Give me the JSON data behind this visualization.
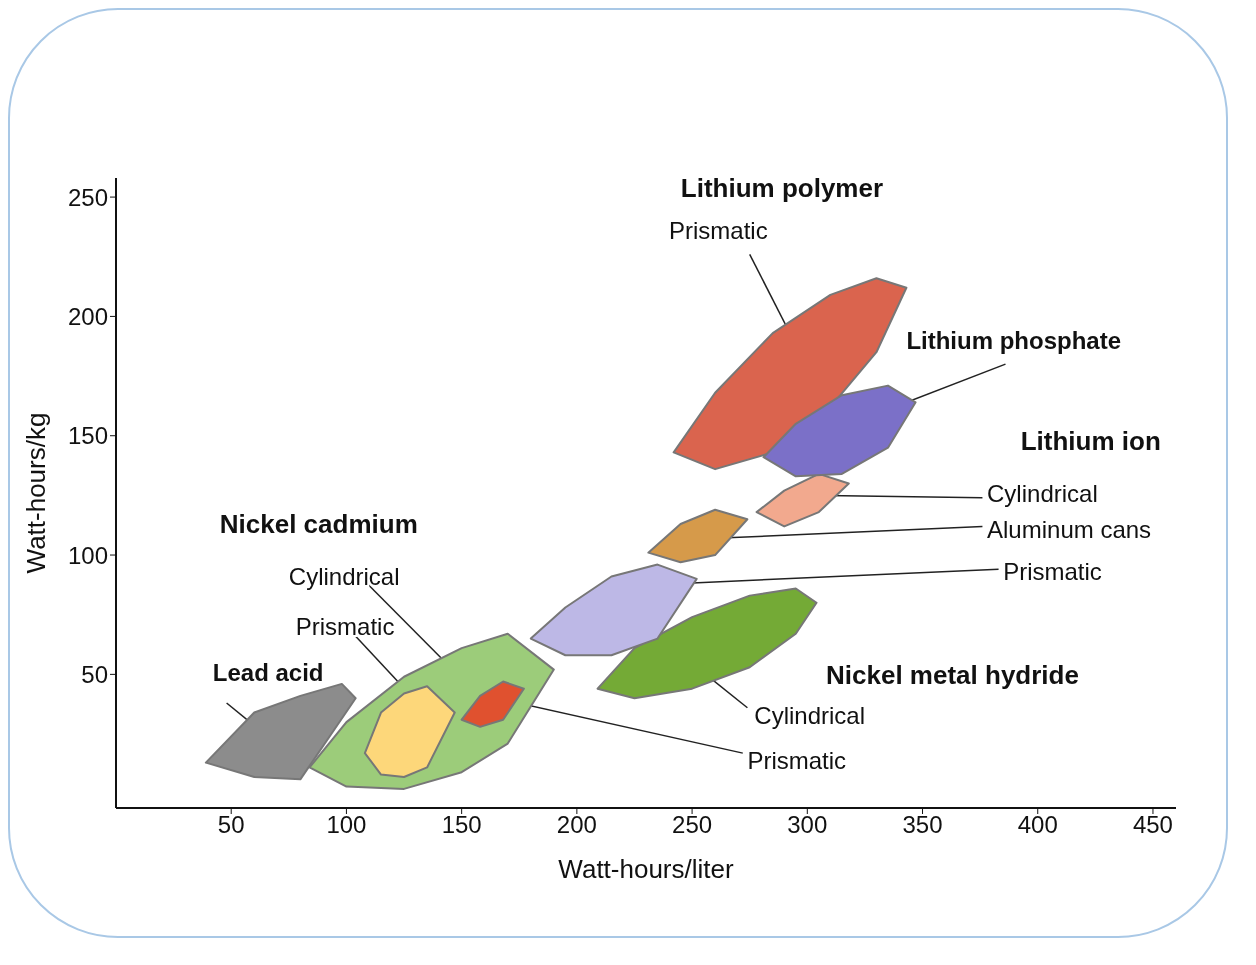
{
  "chart_data": {
    "type": "area",
    "xlabel": "Watt-hours/liter",
    "ylabel": "Watt-hours/kg",
    "xlim": [
      0,
      460
    ],
    "ylim": [
      -6,
      258
    ],
    "xticks": [
      50,
      100,
      150,
      200,
      250,
      300,
      350,
      400,
      450
    ],
    "yticks": [
      50,
      100,
      150,
      200,
      250
    ],
    "series": [
      {
        "name": "Lead acid",
        "color": "#8c8c8c",
        "x": [
          39,
          60,
          80,
          104,
          98,
          80,
          60
        ],
        "values": [
          13,
          7,
          6,
          40,
          46,
          41,
          34
        ]
      },
      {
        "name": "Cylindrical",
        "color": "#9ccc7a",
        "x": [
          84,
          100,
          125,
          150,
          170,
          190,
          170,
          150,
          125,
          100
        ],
        "values": [
          11,
          3,
          2,
          9,
          21,
          52,
          67,
          61,
          49,
          30
        ]
      },
      {
        "name": "Prismatic",
        "color": "#fdd77a",
        "x": [
          108,
          115,
          125,
          135,
          147,
          135,
          125,
          115
        ],
        "values": [
          17,
          8,
          7,
          11,
          34,
          45,
          42,
          34
        ]
      },
      {
        "name": "Prismatic",
        "color": "#e0512f",
        "x": [
          150,
          158,
          168,
          177,
          168,
          158
        ],
        "values": [
          31,
          28,
          31,
          44,
          47,
          41
        ]
      },
      {
        "name": "Cylindrical",
        "color": "#74aa36",
        "x": [
          209,
          225,
          250,
          275,
          295,
          304,
          295,
          275,
          250,
          225
        ],
        "values": [
          44,
          40,
          44,
          53,
          67,
          80,
          86,
          83,
          74,
          61
        ]
      },
      {
        "name": "Prismatic",
        "color": "#bdb8e6",
        "x": [
          180,
          195,
          215,
          235,
          252,
          235,
          215,
          195
        ],
        "values": [
          65,
          58,
          58,
          65,
          90,
          96,
          91,
          78
        ]
      },
      {
        "name": "Aluminum cans",
        "color": "#d69a4a",
        "x": [
          231,
          245,
          260,
          274,
          260,
          245
        ],
        "values": [
          101,
          97,
          100,
          115,
          119,
          113
        ]
      },
      {
        "name": "Cylindrical",
        "color": "#f2a98e",
        "x": [
          278,
          290,
          305,
          318,
          305,
          290
        ],
        "values": [
          118,
          112,
          118,
          130,
          134,
          127
        ]
      },
      {
        "name": "Prismatic",
        "color": "#da644e",
        "x": [
          242,
          260,
          285,
          310,
          330,
          343,
          330,
          310,
          285,
          260
        ],
        "values": [
          143,
          136,
          143,
          162,
          185,
          212,
          216,
          209,
          193,
          168
        ]
      },
      {
        "name": "Lithium phosphate",
        "color": "#7b70c8",
        "x": [
          281,
          295,
          315,
          335,
          347,
          335,
          315,
          295
        ],
        "values": [
          141,
          133,
          134,
          145,
          164,
          171,
          167,
          155
        ]
      }
    ],
    "annotations": [
      "Nickel cadmium",
      "Nickel metal hydride",
      "Lithium ion",
      "Lithium polymer"
    ]
  }
}
